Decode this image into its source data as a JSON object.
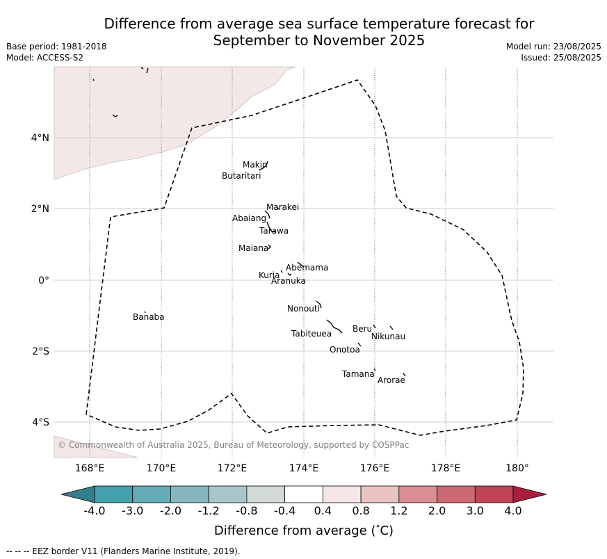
{
  "header": {
    "title_line1": "Difference from average sea surface temperature forecast for",
    "title_line2": "September to November 2025",
    "base_period": "Base period: 1981-2018",
    "model": "Model: ACCESS-S2",
    "model_run": "Model run: 23/08/2025",
    "issued": "Issued: 25/08/2025"
  },
  "map": {
    "land_color": "#f4e8e6",
    "anomaly_fill": "#ffffff",
    "lat_labels": [
      "4°N",
      "2°N",
      "0°",
      "2°S",
      "4°S"
    ],
    "lon_labels": [
      "168°E",
      "170°E",
      "172°E",
      "174°E",
      "176°E",
      "178°E",
      "180°"
    ],
    "islands": [
      "Makin",
      "Butaritari",
      "Marakei",
      "Abaiang",
      "Tarawa",
      "Maiana",
      "Abemama",
      "Kuria",
      "Aranuka",
      "Nonouti",
      "Banaba",
      "Beru",
      "Nikunau",
      "Tabiteuea",
      "Onotoa",
      "Tamana",
      "Arorae"
    ],
    "copyright": "© Commonwealth of Australia 2025, Bureau of Meteorology, supported by COSPPac"
  },
  "colorbar": {
    "ticks": [
      "-4.0",
      "-3.0",
      "-2.0",
      "-1.2",
      "-0.8",
      "-0.4",
      "0.4",
      "0.8",
      "1.2",
      "2.0",
      "3.0",
      "4.0"
    ],
    "colors": [
      "#44a0ae",
      "#65abb6",
      "#86b6be",
      "#a9c6ca",
      "#d2d9d9",
      "#ffffff",
      "#f5e7e6",
      "#e9c4c2",
      "#d98f94",
      "#cc6a74",
      "#c14456"
    ],
    "under_color": "#347f8e",
    "over_color": "#a81f3d",
    "label": "Difference from average (",
    "label_symbol": "°",
    "label_unit": "C)"
  },
  "footnote": "--  --  -- EEZ border V11 (Flanders Marine Institute, 2019)."
}
